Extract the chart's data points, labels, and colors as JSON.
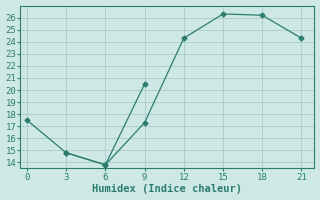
{
  "xlabel": "Humidex (Indice chaleur)",
  "series1_x": [
    0,
    3,
    6,
    9,
    12,
    15,
    18,
    21
  ],
  "series1_y": [
    17.5,
    14.8,
    13.8,
    17.3,
    24.3,
    26.3,
    26.2,
    24.3
  ],
  "series2_x": [
    3,
    6,
    9
  ],
  "series2_y": [
    14.8,
    13.8,
    20.5
  ],
  "line_color": "#2d7d6e",
  "marker": "D",
  "marker_size": 2.5,
  "bg_color": "#cde8e5",
  "grid_color": "#b0cece",
  "xlim": [
    -0.5,
    22
  ],
  "ylim": [
    13.5,
    27
  ],
  "xticks": [
    0,
    3,
    6,
    9,
    12,
    15,
    18,
    21
  ],
  "yticks": [
    14,
    15,
    16,
    17,
    18,
    19,
    20,
    21,
    22,
    23,
    24,
    25,
    26
  ],
  "tick_fontsize": 6.5,
  "label_fontsize": 7.5
}
